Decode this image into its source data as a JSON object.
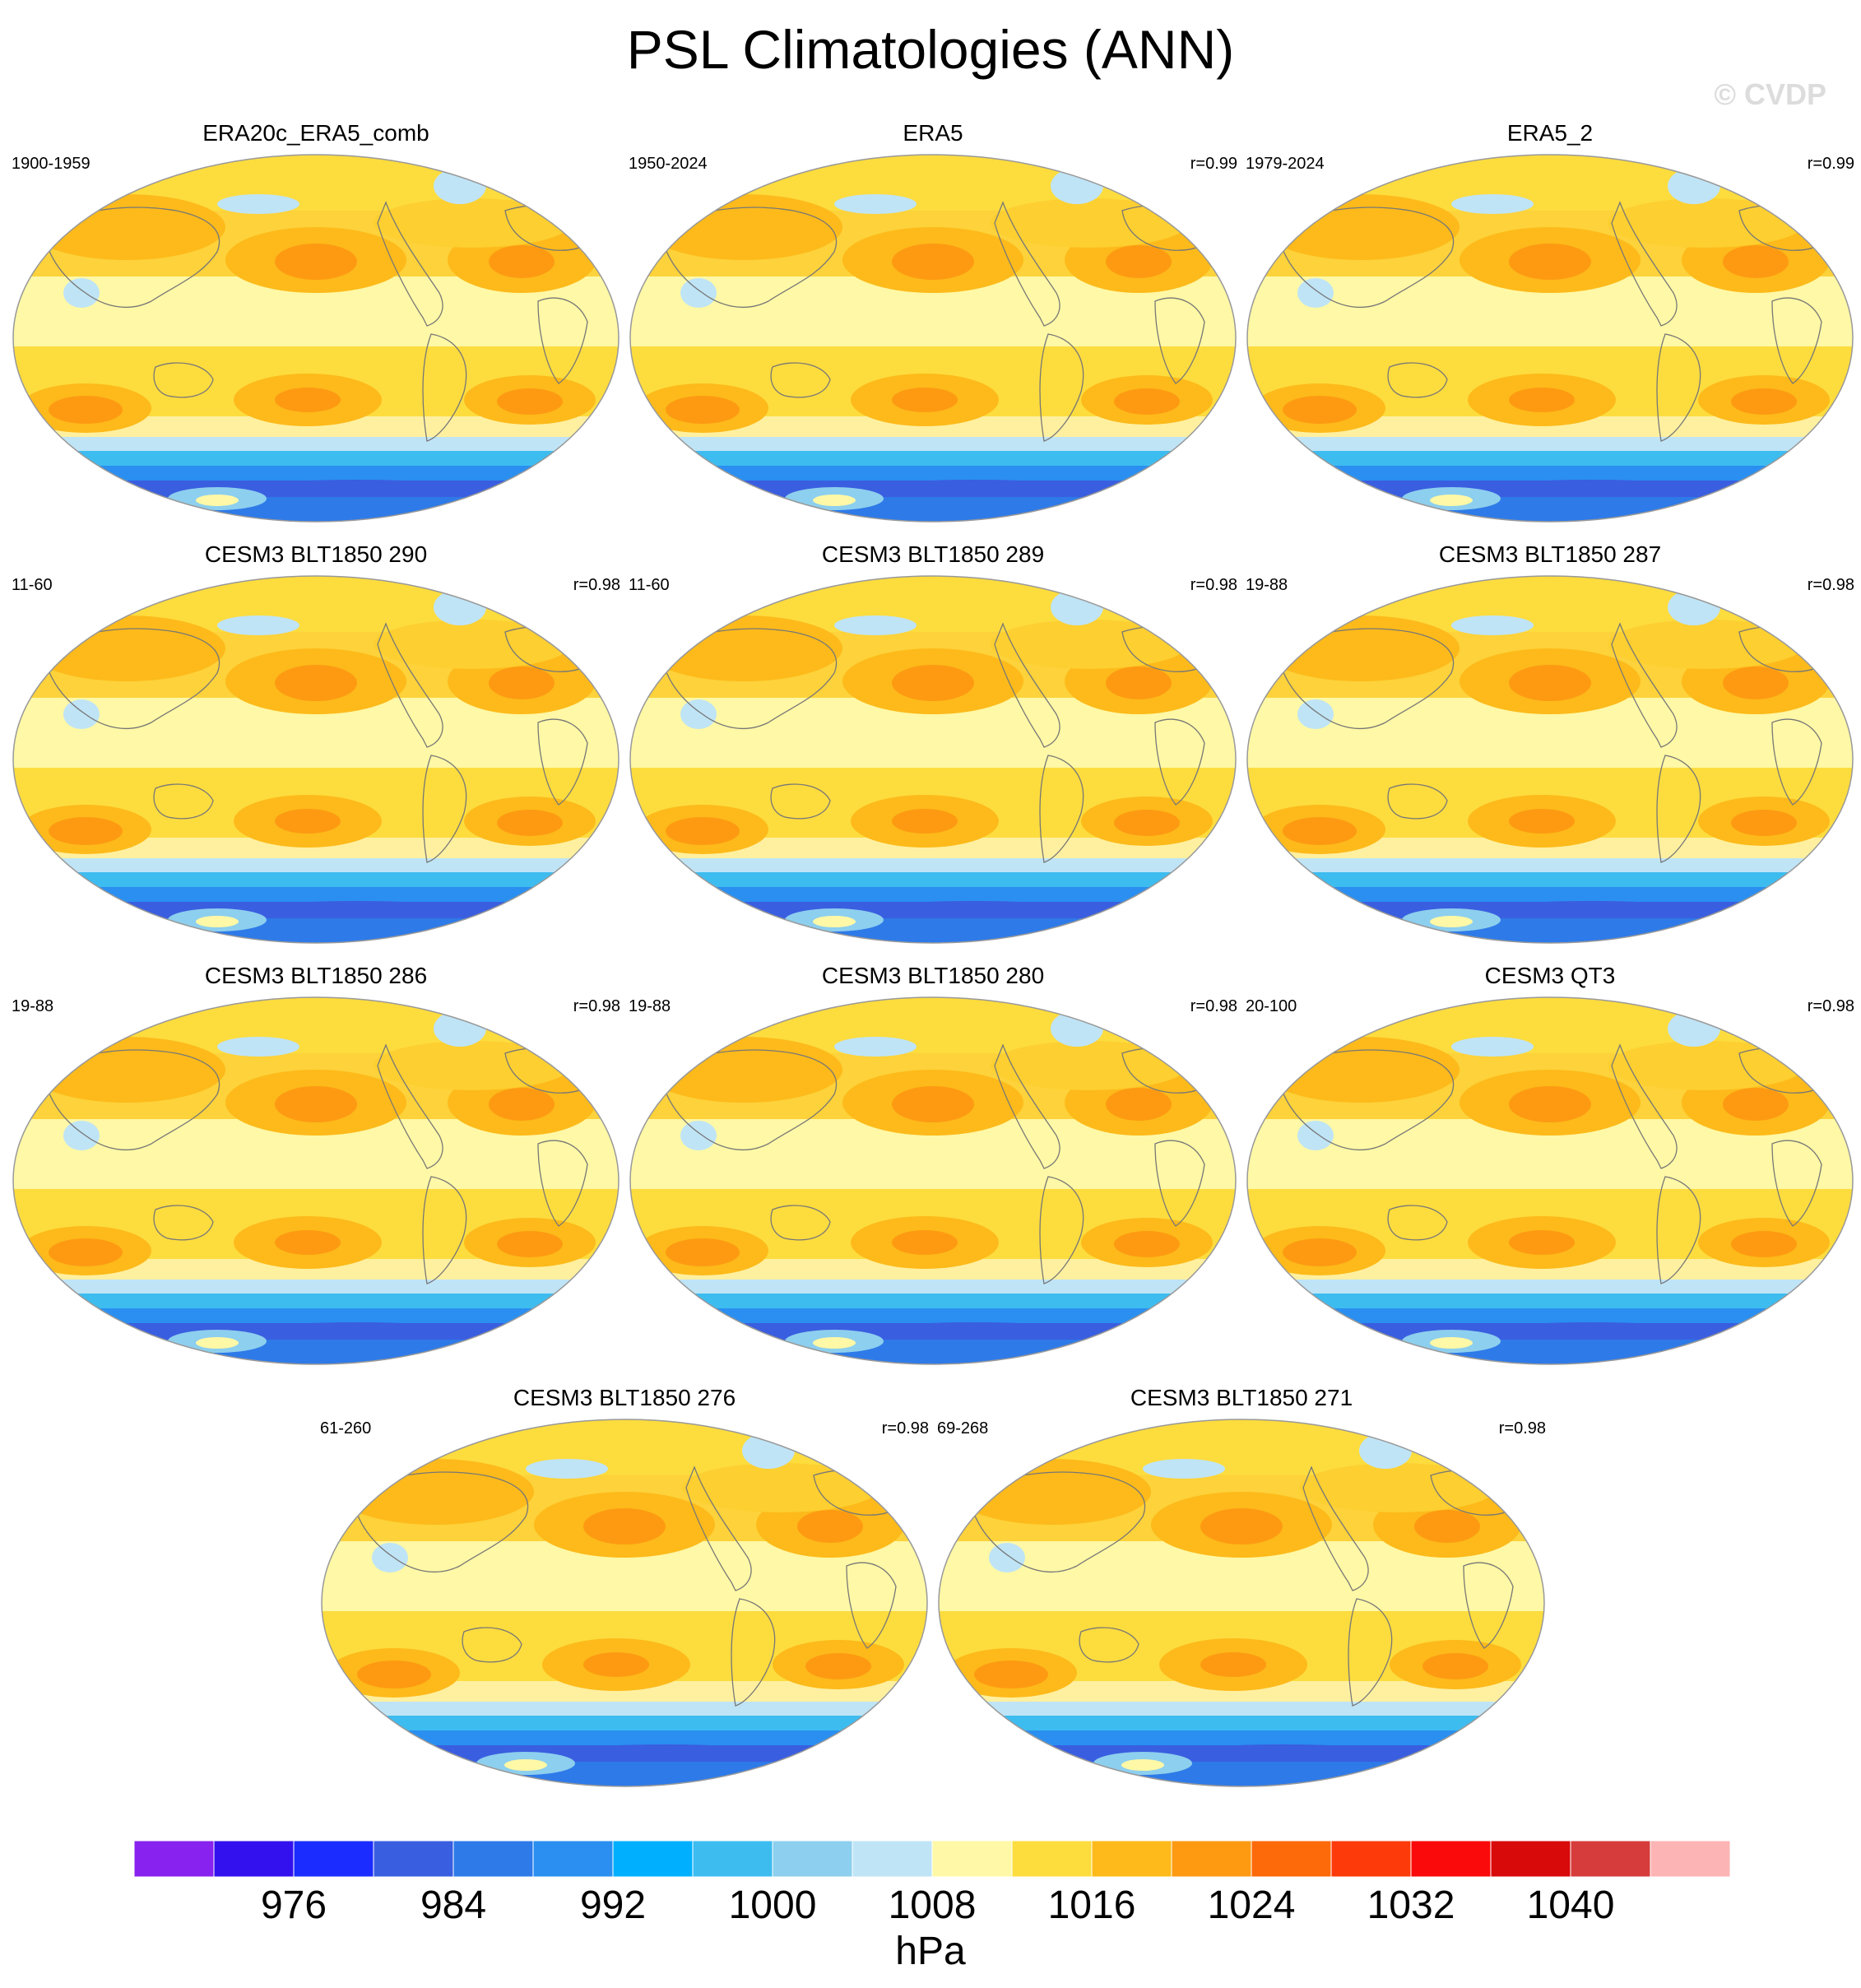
{
  "title": "PSL Climatologies (ANN)",
  "watermark": "© CVDP",
  "panels": [
    {
      "title": "ERA20c_ERA5_comb",
      "period": "1900-1959",
      "corr": ""
    },
    {
      "title": "ERA5",
      "period": "1950-2024",
      "corr": "r=0.99"
    },
    {
      "title": "ERA5_2",
      "period": "1979-2024",
      "corr": "r=0.99"
    },
    {
      "title": "CESM3 BLT1850 290",
      "period": "11-60",
      "corr": "r=0.98"
    },
    {
      "title": "CESM3 BLT1850 289",
      "period": "11-60",
      "corr": "r=0.98"
    },
    {
      "title": "CESM3 BLT1850 287",
      "period": "19-88",
      "corr": "r=0.98"
    },
    {
      "title": "CESM3 BLT1850 286",
      "period": "19-88",
      "corr": "r=0.98"
    },
    {
      "title": "CESM3 BLT1850 280",
      "period": "19-88",
      "corr": "r=0.98"
    },
    {
      "title": "CESM3 QT3",
      "period": "20-100",
      "corr": "r=0.98"
    },
    {
      "title": "CESM3 BLT1850 276",
      "period": "61-260",
      "corr": "r=0.98"
    },
    {
      "title": "CESM3 BLT1850 271",
      "period": "69-268",
      "corr": "r=0.98"
    }
  ],
  "colorbar": {
    "unit": "hPa",
    "tick_labels": [
      "976",
      "984",
      "992",
      "1000",
      "1008",
      "1016",
      "1024",
      "1032",
      "1040"
    ],
    "colors": [
      "#8822ee",
      "#3311ee",
      "#1a2cff",
      "#3a5ee0",
      "#2e7ae8",
      "#2a8ff0",
      "#00b0ff",
      "#3dbcf0",
      "#8dcfee",
      "#bfe4f6",
      "#fff8a6",
      "#fddc3e",
      "#fdba1a",
      "#fd9a12",
      "#fd6a0a",
      "#fd3a0a",
      "#fa0a0a",
      "#d80a0a",
      "#d63c3c",
      "#fdb4b4"
    ]
  }
}
